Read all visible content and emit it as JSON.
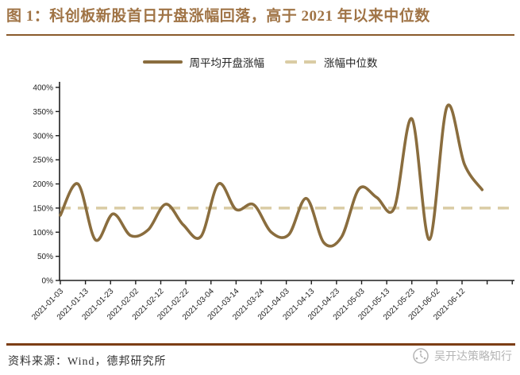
{
  "title": "图 1：科创板新股首日开盘涨幅回落，高于 2021 年以来中位数",
  "legend": {
    "series_label": "周平均开盘涨幅",
    "median_label": "涨幅中位数"
  },
  "footer": {
    "source": "资料来源：Wind，德邦研究所",
    "watermark": "吴开达策略知行"
  },
  "colors": {
    "title": "#A07446",
    "title_rule": "#8A5A2B",
    "line": "#8A6D3E",
    "median": "#DACCA4",
    "axis": "#1F1F1F",
    "tick_text": "#1F1F1F",
    "footer_rule": "#7C3E15",
    "footer_text": "#333333",
    "watermark": "#B5B5B5",
    "background": "#FFFFFF"
  },
  "chart_data": {
    "type": "line",
    "title": "",
    "xlabel": "",
    "ylabel": "",
    "ylim": [
      0,
      400
    ],
    "ytick_step": 50,
    "ytick_labels": [
      "0%",
      "50%",
      "100%",
      "150%",
      "200%",
      "250%",
      "300%",
      "350%",
      "400%"
    ],
    "xtick_labels": [
      "2021-01-03",
      "2021-01-13",
      "2021-01-23",
      "2021-02-02",
      "2021-02-12",
      "2021-02-22",
      "2021-03-04",
      "2021-03-14",
      "2021-03-24",
      "2021-04-03",
      "2021-04-13",
      "2021-04-23",
      "2021-05-03",
      "2021-05-13",
      "2021-05-23",
      "2021-06-02",
      "2021-06-12"
    ],
    "grid": false,
    "legend_position": "top",
    "yaxis_format": "percent",
    "series": [
      {
        "name": "周平均开盘涨幅",
        "style": "smooth-solid",
        "x": [
          "2021-01-03",
          "2021-01-10",
          "2021-01-17",
          "2021-01-24",
          "2021-01-31",
          "2021-02-07",
          "2021-02-14",
          "2021-02-21",
          "2021-02-28",
          "2021-03-07",
          "2021-03-14",
          "2021-03-21",
          "2021-03-28",
          "2021-04-04",
          "2021-04-11",
          "2021-04-18",
          "2021-04-25",
          "2021-05-02",
          "2021-05-09",
          "2021-05-16",
          "2021-05-23",
          "2021-05-30",
          "2021-06-06",
          "2021-06-13",
          "2021-06-20"
        ],
        "values": [
          135,
          200,
          84,
          138,
          93,
          105,
          158,
          115,
          91,
          200,
          147,
          157,
          100,
          95,
          170,
          78,
          90,
          190,
          172,
          150,
          335,
          85,
          360,
          240,
          188
        ]
      },
      {
        "name": "涨幅中位数",
        "style": "dashed-constant",
        "value": 150
      }
    ]
  }
}
